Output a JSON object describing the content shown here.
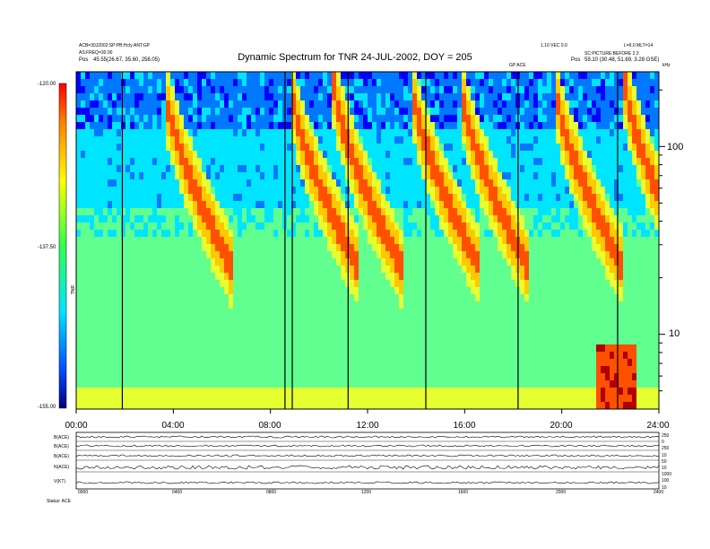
{
  "header": {
    "left_line1": "ACB=30J2002:SP:PB:Hcly:ANT:GP",
    "left_line2": "AS:FREQ=30.00",
    "left_line3_label": "Pos",
    "left_line3_value": "45.55(26.67, 35.60, 258.05)",
    "right_line1_a": "1.10 VEC 0.0",
    "right_line1_b": "L=6.0 MLT=14",
    "right_line2": "SC:PICTURE:BEFORE 2.3",
    "right_line3_label": "Pos",
    "right_line3_value": "59.10 (30.48, 51.69, 3.28 GSE)",
    "top_marker": "GP ACE",
    "unit_label": "kHz"
  },
  "chart_data": {
    "type": "heatmap",
    "title": "Dynamic Spectrum for TNR 24-JUL-2002, DOY = 205",
    "x_ticks": [
      "00:00",
      "04:00",
      "08:00",
      "12:00",
      "16:00",
      "20:00",
      "24:00"
    ],
    "x_range_hours": [
      0,
      24
    ],
    "y_scale": "log",
    "y_range_khz": [
      4,
      250
    ],
    "y_ticks": [
      "100",
      "10"
    ],
    "y_tick_values": [
      100,
      10
    ],
    "colorbar_ticks": [
      "-120.00",
      "-137.50",
      "-155.00"
    ],
    "colorbar_range": [
      -155,
      -120
    ],
    "colorbar_label": "TNR",
    "colors": [
      "#00008b",
      "#0000ff",
      "#0078ff",
      "#00e5ff",
      "#60ff90",
      "#e6ff30",
      "#ffc800",
      "#ff5000",
      "#b00000"
    ],
    "burst_times_hours": [
      1.9,
      8.6,
      8.9,
      11.2,
      14.4,
      18.2,
      22.3
    ],
    "drift_bursts_start_hours": [
      3.6,
      8.8,
      10.6,
      13.8,
      15.8,
      19.7,
      22.6
    ]
  },
  "footer": {
    "panel_labels": [
      "B(ACE)",
      "B(ACE)",
      "B(ACE)",
      "N(ACE)",
      "V(KT)"
    ],
    "right_labels": [
      "250",
      "0",
      "250",
      "10",
      "50",
      "10",
      "1000",
      "100",
      "10"
    ],
    "x_ticks": [
      "0000",
      "0400",
      "0800",
      "1200",
      "1600",
      "2000",
      "2400"
    ],
    "note": "Status: ACE"
  }
}
